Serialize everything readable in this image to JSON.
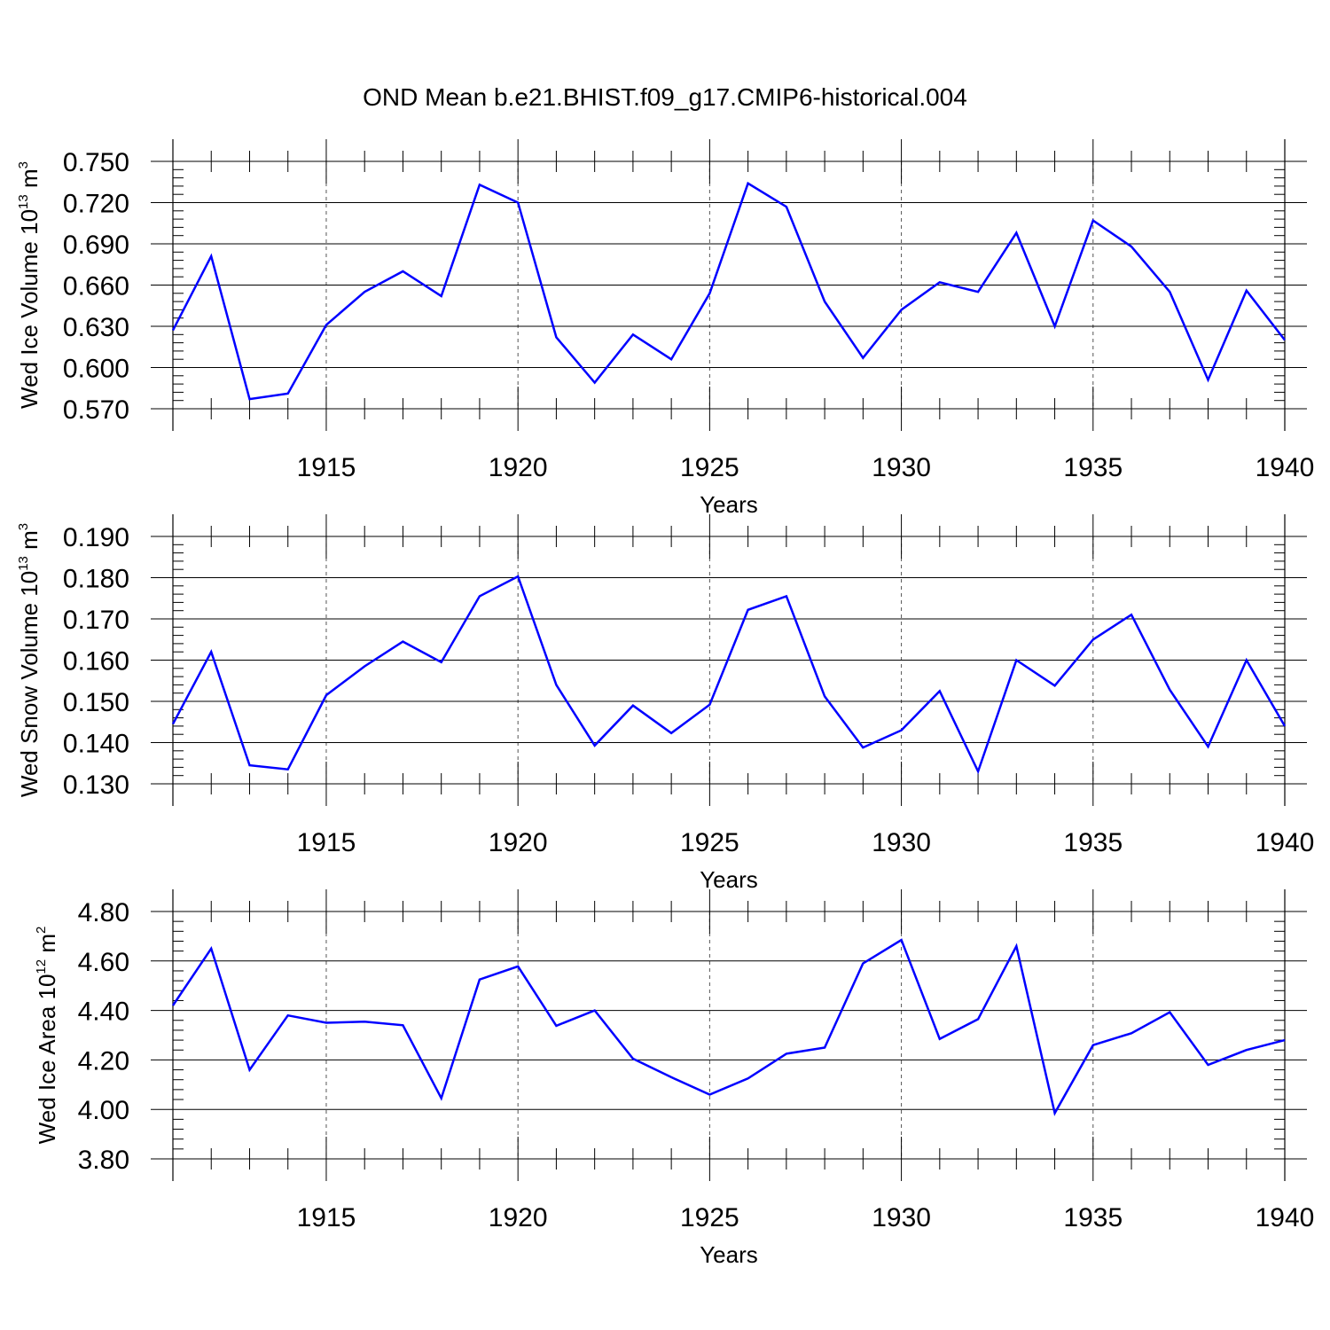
{
  "title": "OND Mean b.e21.BHIST.f09_g17.CMIP6-historical.004",
  "colors": {
    "line": "#0000ff",
    "axis": "#000000",
    "grid": "#555555"
  },
  "chart_data": [
    {
      "type": "line",
      "ylabel": {
        "text": "Wed Ice Volume 10",
        "sup": "13",
        "unit": " m",
        "unit_sup": "3"
      },
      "xlabel": "Years",
      "xlim": [
        1911,
        1940
      ],
      "ylim": [
        0.57,
        0.75
      ],
      "yticks": [
        0.57,
        0.6,
        0.63,
        0.66,
        0.69,
        0.72,
        0.75
      ],
      "ytick_labels": [
        "0.570",
        "0.600",
        "0.630",
        "0.660",
        "0.690",
        "0.720",
        "0.750"
      ],
      "xticks": [
        1915,
        1920,
        1925,
        1930,
        1935,
        1940
      ],
      "xtick_labels": [
        "1915",
        "1920",
        "1925",
        "1930",
        "1935",
        "1940"
      ],
      "grid": "x-dashed",
      "x": [
        1911,
        1912,
        1913,
        1914,
        1915,
        1916,
        1917,
        1918,
        1919,
        1920,
        1921,
        1922,
        1923,
        1924,
        1925,
        1926,
        1927,
        1928,
        1929,
        1930,
        1931,
        1932,
        1933,
        1934,
        1935,
        1936,
        1937,
        1938,
        1939,
        1940
      ],
      "values": [
        0.627,
        0.681,
        0.577,
        0.581,
        0.631,
        0.655,
        0.67,
        0.652,
        0.733,
        0.72,
        0.622,
        0.589,
        0.624,
        0.606,
        0.654,
        0.734,
        0.717,
        0.648,
        0.607,
        0.642,
        0.662,
        0.655,
        0.698,
        0.63,
        0.707,
        0.688,
        0.655,
        0.591,
        0.656,
        0.62
      ]
    },
    {
      "type": "line",
      "ylabel": {
        "text": "Wed Snow Volume 10",
        "sup": "13",
        "unit": " m",
        "unit_sup": "3"
      },
      "xlabel": "Years",
      "xlim": [
        1911,
        1940
      ],
      "ylim": [
        0.13,
        0.19
      ],
      "yticks": [
        0.13,
        0.14,
        0.15,
        0.16,
        0.17,
        0.18,
        0.19
      ],
      "ytick_labels": [
        "0.130",
        "0.140",
        "0.150",
        "0.160",
        "0.170",
        "0.180",
        "0.190"
      ],
      "xticks": [
        1915,
        1920,
        1925,
        1930,
        1935,
        1940
      ],
      "xtick_labels": [
        "1915",
        "1920",
        "1925",
        "1930",
        "1935",
        "1940"
      ],
      "grid": "x-dashed",
      "x": [
        1911,
        1912,
        1913,
        1914,
        1915,
        1916,
        1917,
        1918,
        1919,
        1920,
        1921,
        1922,
        1923,
        1924,
        1925,
        1926,
        1927,
        1928,
        1929,
        1930,
        1931,
        1932,
        1933,
        1934,
        1935,
        1936,
        1937,
        1938,
        1939,
        1940
      ],
      "values": [
        0.1445,
        0.162,
        0.1345,
        0.1335,
        0.1515,
        0.1585,
        0.1645,
        0.1595,
        0.1755,
        0.1803,
        0.154,
        0.1393,
        0.149,
        0.1423,
        0.1492,
        0.1722,
        0.1755,
        0.1512,
        0.1388,
        0.143,
        0.1525,
        0.133,
        0.16,
        0.1538,
        0.165,
        0.171,
        0.1528,
        0.139,
        0.16,
        0.144
      ]
    },
    {
      "type": "line",
      "ylabel": {
        "text": "Wed Ice Area 10",
        "sup": "12",
        "unit": " m",
        "unit_sup": "2"
      },
      "xlabel": "Years",
      "xlim": [
        1911,
        1940
      ],
      "ylim": [
        3.8,
        4.8
      ],
      "yticks": [
        3.8,
        4.0,
        4.2,
        4.4,
        4.6,
        4.8
      ],
      "ytick_labels": [
        "3.80",
        "4.00",
        "4.20",
        "4.40",
        "4.60",
        "4.80"
      ],
      "xticks": [
        1915,
        1920,
        1925,
        1930,
        1935,
        1940
      ],
      "xtick_labels": [
        "1915",
        "1920",
        "1925",
        "1930",
        "1935",
        "1940"
      ],
      "grid": "x-dashed",
      "x": [
        1911,
        1912,
        1913,
        1914,
        1915,
        1916,
        1917,
        1918,
        1919,
        1920,
        1921,
        1922,
        1923,
        1924,
        1925,
        1926,
        1927,
        1928,
        1929,
        1930,
        1931,
        1932,
        1933,
        1934,
        1935,
        1936,
        1937,
        1938,
        1939,
        1940
      ],
      "values": [
        4.42,
        4.65,
        4.16,
        4.38,
        4.35,
        4.355,
        4.34,
        4.045,
        4.525,
        4.578,
        4.338,
        4.4,
        4.205,
        4.13,
        4.06,
        4.125,
        4.225,
        4.25,
        4.59,
        4.685,
        4.285,
        4.365,
        4.66,
        3.985,
        4.26,
        4.308,
        4.393,
        4.18,
        4.24,
        4.28
      ]
    }
  ]
}
